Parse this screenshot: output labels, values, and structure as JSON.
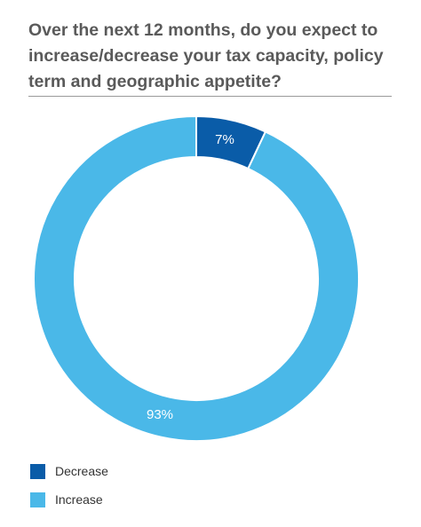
{
  "chart_data": {
    "type": "pie",
    "title": "Over the next 12 months, do you expect to increase/decrease your tax capacity, policy term and geographic appetite?",
    "labels": [
      "Decrease",
      "Increase"
    ],
    "values": [
      7,
      93
    ],
    "value_labels": [
      "7%",
      "93%"
    ],
    "colors": [
      "#0a5ca8",
      "#4ab8e8"
    ],
    "donut": true,
    "legend": "bottom-left"
  }
}
